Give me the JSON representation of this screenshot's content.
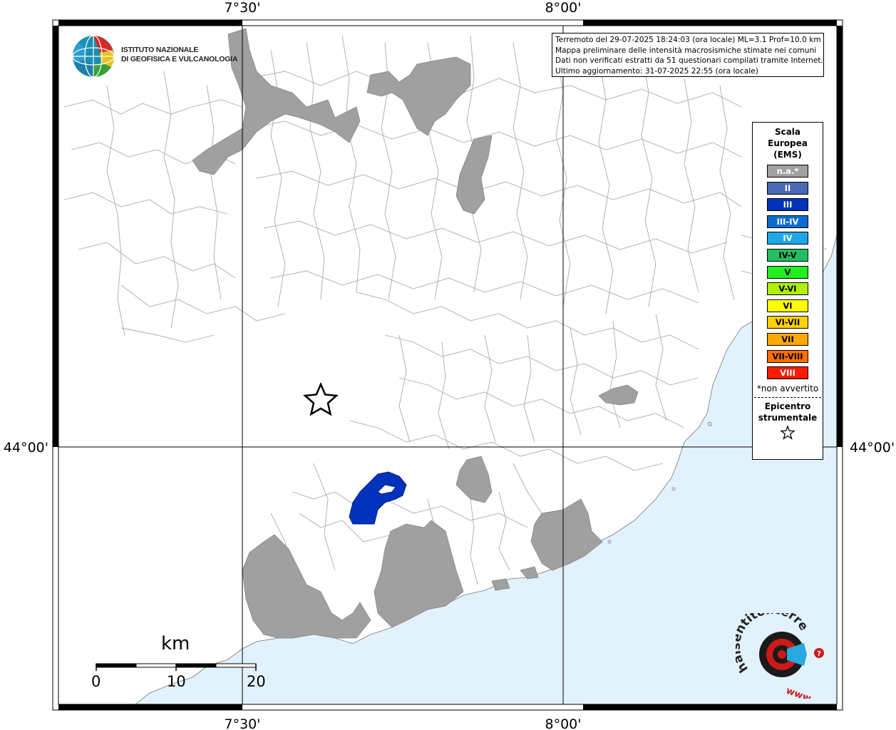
{
  "map": {
    "coord_labels": {
      "top_left": "7°30'",
      "top_right": "8°00'",
      "bottom_left": "7°30'",
      "bottom_right": "8°00'",
      "left": "44°00'",
      "right": "44°00'"
    },
    "colors": {
      "land": "#ffffff",
      "sea": "#e2f2fc",
      "not_felt": "#a0a0a0",
      "intensity_III": "#0033bb",
      "borders": "#aaaaaa"
    }
  },
  "info": {
    "line1": "Terremoto del 29-07-2025 18:24:03 (ora locale) ML=3.1 Prof=10.0 km",
    "line2": "Mappa preliminare delle intensità macrosismiche stimate nei comuni",
    "line3": "Dati non verificati estratti da 51 questionari compilati tramite Internet.",
    "line4": "Ultimo aggiornamento: 31-07-2025 22:55 (ora locale)"
  },
  "legend": {
    "title_line1": "Scala",
    "title_line2": "Europea",
    "title_line3": "(EMS)",
    "items": [
      {
        "label": "n.a.*",
        "color": "#a0a0a0",
        "text_color": "#ffffff"
      },
      {
        "label": "II",
        "color": "#4a68b4",
        "text_color": "#ffffff"
      },
      {
        "label": "III",
        "color": "#0033bb",
        "text_color": "#ffffff"
      },
      {
        "label": "III-IV",
        "color": "#0a6cd0",
        "text_color": "#ffffff"
      },
      {
        "label": "IV",
        "color": "#1ea6e6",
        "text_color": "#ffffff"
      },
      {
        "label": "IV-V",
        "color": "#20c060",
        "text_color": "#000000"
      },
      {
        "label": "V",
        "color": "#22ee22",
        "text_color": "#000000"
      },
      {
        "label": "V-VI",
        "color": "#b0f000",
        "text_color": "#000000"
      },
      {
        "label": "VI",
        "color": "#ffff00",
        "text_color": "#000000"
      },
      {
        "label": "VI-VII",
        "color": "#ffd000",
        "text_color": "#000000"
      },
      {
        "label": "VII",
        "color": "#ffa800",
        "text_color": "#000000"
      },
      {
        "label": "VII-VIII",
        "color": "#ff7000",
        "text_color": "#000000"
      },
      {
        "label": "VIII",
        "color": "#ff1a00",
        "text_color": "#ffffff"
      }
    ],
    "note": "*non avvertito",
    "epicenter_line1": "Epicentro",
    "epicenter_line2": "strumentale"
  },
  "logo": {
    "line1": "ISTITUTO NAZIONALE",
    "line2": "DI GEOFISICA E VULCANOLOGIA"
  },
  "scale_bar": {
    "unit": "km",
    "labels": [
      "0",
      "10",
      "20"
    ]
  },
  "hsit_logo": {
    "text": "haisentitoilterremoto.it",
    "www": "www."
  }
}
